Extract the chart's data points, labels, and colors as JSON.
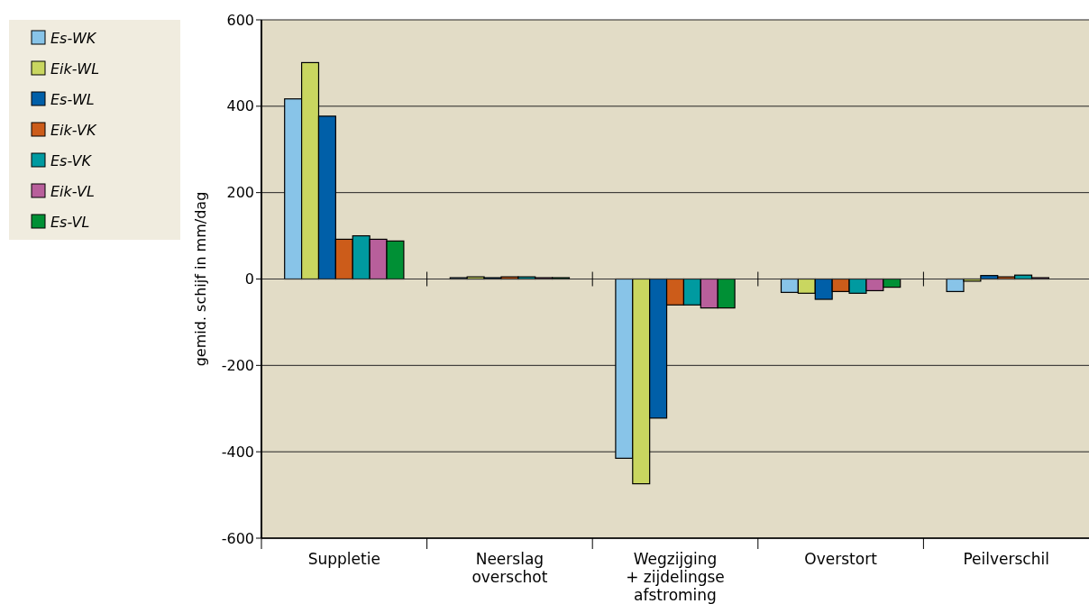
{
  "chart_data": {
    "type": "bar",
    "ylabel": "gemid. schijf in mm/dag",
    "categories": [
      "Suppletie",
      "Neerslag\noverschot",
      "Wegzijging\n+ zijdelingse\nafstroming",
      "Overstort",
      "Peilverschil"
    ],
    "series": [
      {
        "name": "Es-WK",
        "color": "#88c4e8",
        "values": [
          417,
          3,
          -415,
          -31,
          -29
        ]
      },
      {
        "name": "Eik-WL",
        "color": "#c9d660",
        "values": [
          501,
          5,
          -474,
          -33,
          -5
        ]
      },
      {
        "name": "Es-WL",
        "color": "#005fa8",
        "values": [
          377,
          3,
          -322,
          -47,
          8
        ]
      },
      {
        "name": "Eik-VK",
        "color": "#cc5c1a",
        "values": [
          92,
          5,
          -60,
          -29,
          5
        ]
      },
      {
        "name": "Es-VK",
        "color": "#009aa0",
        "values": [
          100,
          5,
          -60,
          -33,
          9
        ]
      },
      {
        "name": "Eik-VL",
        "color": "#b85f9b",
        "values": [
          92,
          3,
          -67,
          -27,
          3
        ]
      },
      {
        "name": "Es-VL",
        "color": "#009035",
        "values": [
          88,
          3,
          -67,
          -19,
          0
        ]
      }
    ],
    "ylim": [
      -600,
      600
    ],
    "yticks": [
      -600,
      -400,
      -200,
      0,
      200,
      400,
      600
    ],
    "grid": "y",
    "legend": "top left"
  }
}
